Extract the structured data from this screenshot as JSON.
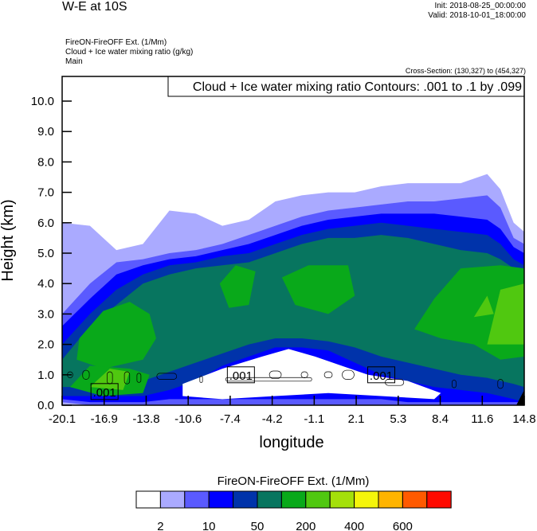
{
  "header": {
    "title": "W-E at 10S",
    "init": "Init: 2018-08-25_00:00:00",
    "valid": "Valid: 2018-10-01_18:00:00",
    "subtitles": [
      "FireON-FireOFF Ext.   (1/Mm)",
      "Cloud + Ice water mixing ratio   (g/kg)",
      "Main"
    ],
    "cross_section": "Cross-Section: (130,327) to (454,327)"
  },
  "chart_data": {
    "type": "heatmap",
    "title": "Cloud + Ice water mixing ratio Contours: .001 to .1 by .099",
    "xlabel": "longitude",
    "ylabel": "Height (km)",
    "xlim": [
      -20.1,
      14.8
    ],
    "ylim": [
      0,
      10.8
    ],
    "xticks": [
      "-20.1",
      "-16.9",
      "-13.8",
      "-10.6",
      "-7.4",
      "-4.2",
      "-1.1",
      "2.1",
      "5.3",
      "8.4",
      "11.6",
      "14.8"
    ],
    "yticks": [
      "0.0",
      "1.0",
      "2.0",
      "3.0",
      "4.0",
      "5.0",
      "6.0",
      "7.0",
      "8.0",
      "9.0",
      "10.0"
    ],
    "contour_labels": [
      {
        "text": ".001",
        "lon": -16.9,
        "h": 0.45
      },
      {
        "text": ".001",
        "lon": -6.6,
        "h": 1.0
      },
      {
        "text": ".001",
        "lon": 4.0,
        "h": 1.0
      }
    ],
    "colorbar": {
      "title": "FireON-FireOFF Ext.  (1/Mm)",
      "colors": [
        "#ffffff",
        "#aaaaff",
        "#5a5aff",
        "#0000ff",
        "#0033aa",
        "#07755f",
        "#09a91a",
        "#50c810",
        "#a4e00a",
        "#f5f50a",
        "#ffb400",
        "#ff5a00",
        "#ff0a00"
      ],
      "labels": [
        {
          "text": "2",
          "boundary": 1
        },
        {
          "text": "10",
          "boundary": 3
        },
        {
          "text": "50",
          "boundary": 5
        },
        {
          "text": "200",
          "boundary": 7
        },
        {
          "text": "400",
          "boundary": 9
        },
        {
          "text": "600",
          "boundary": 11
        }
      ]
    },
    "profile_lons": [
      -20.1,
      -18,
      -16,
      -14,
      -12,
      -10,
      -8,
      -6,
      -4,
      -2,
      0,
      2,
      4,
      6,
      8,
      10,
      12,
      13,
      14,
      14.8
    ],
    "bands": [
      {
        "color": "#aaaaff",
        "top": [
          6.0,
          5.9,
          5.1,
          5.3,
          6.4,
          6.3,
          5.9,
          6.1,
          6.7,
          6.9,
          7.0,
          7.0,
          7.2,
          7.3,
          7.3,
          7.3,
          7.6,
          7.1,
          6.0,
          5.7
        ],
        "bottom": [
          0,
          0,
          0,
          0,
          0,
          0,
          0,
          0,
          0,
          0,
          0,
          0,
          0,
          0,
          0,
          0,
          0,
          0,
          0,
          0
        ]
      },
      {
        "color": "#5a5aff",
        "top": [
          3.0,
          4.0,
          4.7,
          4.8,
          5.0,
          5.1,
          5.3,
          5.6,
          5.9,
          6.2,
          6.4,
          6.5,
          6.6,
          6.7,
          6.7,
          6.8,
          6.9,
          6.5,
          5.5,
          5.3
        ],
        "bottom": [
          0.1,
          0,
          0,
          0,
          0,
          0,
          0,
          0,
          0,
          0,
          0,
          0,
          0,
          0,
          0,
          0,
          0,
          0,
          0,
          0
        ]
      },
      {
        "color": "#0000ff",
        "top": [
          2.6,
          3.5,
          4.3,
          4.6,
          4.8,
          4.9,
          5.1,
          5.3,
          5.6,
          5.9,
          6.1,
          6.2,
          6.3,
          6.3,
          6.3,
          6.2,
          6.1,
          5.8,
          5.2,
          5.0
        ],
        "bottom": [
          0.2,
          0.1,
          0.1,
          0.1,
          0.2,
          0.2,
          0.2,
          0.2,
          0.2,
          0.2,
          0.2,
          0.2,
          0.2,
          0.1,
          0.1,
          0.1,
          0.1,
          0.1,
          0.1,
          0.1
        ]
      },
      {
        "color": "#0033aa",
        "top": [
          2.0,
          3.0,
          3.8,
          4.3,
          4.6,
          4.7,
          4.9,
          5.0,
          5.3,
          5.6,
          5.8,
          5.9,
          6.0,
          5.9,
          5.8,
          5.7,
          5.6,
          5.3,
          4.8,
          4.6
        ],
        "bottom": [
          0.3,
          0.3,
          0.3,
          0.3,
          0.5,
          0.8,
          1.3,
          1.6,
          1.9,
          1.9,
          1.8,
          1.4,
          1.0,
          0.8,
          0.6,
          0.5,
          0.4,
          0.3,
          0.2,
          0.1
        ]
      },
      {
        "color": "#07755f",
        "top": [
          1.5,
          2.6,
          3.3,
          4.0,
          4.3,
          4.5,
          4.6,
          4.7,
          5.0,
          5.3,
          5.5,
          5.5,
          5.6,
          5.5,
          5.3,
          5.1,
          5.0,
          4.8,
          4.5,
          4.3
        ],
        "bottom": [
          0.6,
          0.6,
          0.6,
          0.8,
          1.1,
          1.4,
          1.7,
          2.0,
          2.2,
          2.2,
          2.1,
          1.9,
          1.6,
          1.4,
          1.2,
          1.0,
          0.9,
          0.8,
          0.7,
          0.6
        ]
      }
    ],
    "regions": [
      {
        "color": "#ffffff",
        "pts": [
          [
            -11,
            0.7
          ],
          [
            -8,
            1.2
          ],
          [
            -5,
            1.6
          ],
          [
            -3,
            1.85
          ],
          [
            -1,
            1.6
          ],
          [
            1,
            1.3
          ],
          [
            3,
            1.0
          ],
          [
            6,
            0.8
          ],
          [
            8.5,
            0.4
          ],
          [
            8,
            0.2
          ],
          [
            4,
            0.3
          ],
          [
            0,
            0.4
          ],
          [
            -4,
            0.3
          ],
          [
            -8,
            0.2
          ],
          [
            -11,
            0.3
          ]
        ]
      },
      {
        "color": "#09a91a",
        "pts": [
          [
            -18.8,
            2.2
          ],
          [
            -17,
            3.1
          ],
          [
            -15,
            3.4
          ],
          [
            -13.5,
            3.0
          ],
          [
            -13,
            2.2
          ],
          [
            -14,
            1.5
          ],
          [
            -17,
            1.2
          ],
          [
            -19,
            1.5
          ]
        ]
      },
      {
        "color": "#09a91a",
        "pts": [
          [
            -19.5,
            0.6
          ],
          [
            -18,
            1.3
          ],
          [
            -15,
            1.2
          ],
          [
            -13.5,
            1.0
          ],
          [
            -14,
            0.4
          ],
          [
            -17,
            0.3
          ]
        ]
      },
      {
        "color": "#09a91a",
        "pts": [
          [
            -8.2,
            4.0
          ],
          [
            -7,
            4.6
          ],
          [
            -5.5,
            4.4
          ],
          [
            -6,
            3.3
          ],
          [
            -7.5,
            3.2
          ]
        ]
      },
      {
        "color": "#09a91a",
        "pts": [
          [
            -3.5,
            4.2
          ],
          [
            -1.5,
            4.6
          ],
          [
            1.5,
            4.6
          ],
          [
            2,
            3.6
          ],
          [
            0,
            3.0
          ],
          [
            -2.5,
            3.3
          ]
        ]
      },
      {
        "color": "#09a91a",
        "pts": [
          [
            6.5,
            2.5
          ],
          [
            8,
            3.5
          ],
          [
            10,
            4.5
          ],
          [
            13,
            4.6
          ],
          [
            14.8,
            4.5
          ],
          [
            14.8,
            1.6
          ],
          [
            13,
            1.5
          ],
          [
            11,
            2.0
          ],
          [
            8.5,
            2.2
          ]
        ]
      },
      {
        "color": "#50c810",
        "pts": [
          [
            -18,
            0.6
          ],
          [
            -16.5,
            1.2
          ],
          [
            -15,
            1.1
          ],
          [
            -15.5,
            0.5
          ]
        ]
      },
      {
        "color": "#50c810",
        "pts": [
          [
            12,
            2.0
          ],
          [
            13,
            3.8
          ],
          [
            14.8,
            4.0
          ],
          [
            14.8,
            2.0
          ]
        ]
      },
      {
        "color": "#50c810",
        "pts": [
          [
            11,
            2.9
          ],
          [
            12,
            3.6
          ],
          [
            12.5,
            3.0
          ]
        ]
      },
      {
        "color": "#000000",
        "pts": [
          [
            14.2,
            0
          ],
          [
            14.8,
            0.5
          ],
          [
            14.8,
            0
          ]
        ]
      }
    ],
    "contours": [
      [
        -19.5,
        1.0,
        0.4,
        0.2
      ],
      [
        -18.3,
        1.0,
        0.5,
        0.3
      ],
      [
        -16.5,
        0.9,
        0.4,
        0.4
      ],
      [
        -15.2,
        0.9,
        0.4,
        0.4
      ],
      [
        -14.3,
        0.9,
        0.3,
        0.3
      ],
      [
        -12.2,
        0.95,
        1.5,
        0.2
      ],
      [
        -9.6,
        0.85,
        0.2,
        0.2
      ],
      [
        -4.0,
        1.0,
        0.9,
        0.25
      ],
      [
        -1.8,
        1.0,
        0.5,
        0.2
      ],
      [
        0,
        1.0,
        0.6,
        0.2
      ],
      [
        1.5,
        1.0,
        0.9,
        0.3
      ],
      [
        5.0,
        0.75,
        1.4,
        0.2
      ],
      [
        9.5,
        0.7,
        0.3,
        0.25
      ],
      [
        13.0,
        0.7,
        0.4,
        0.3
      ],
      [
        -4.5,
        0.85,
        6.5,
        0.12
      ]
    ]
  }
}
